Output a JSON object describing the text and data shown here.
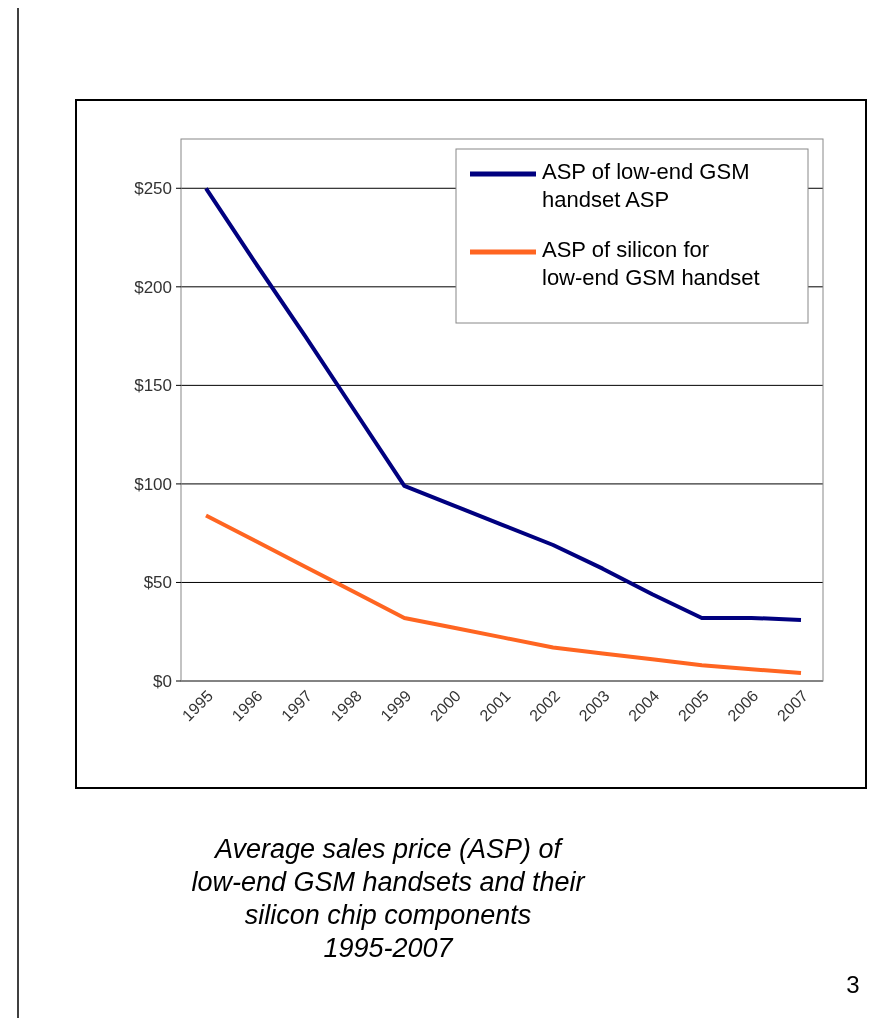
{
  "chart_data": {
    "type": "line",
    "categories": [
      "1995",
      "1996",
      "1997",
      "1998",
      "1999",
      "2000",
      "2001",
      "2002",
      "2003",
      "2004",
      "2005",
      "2006",
      "2007"
    ],
    "series": [
      {
        "name": "ASP of low-end GSM handset ASP",
        "color": "#00007f",
        "values": [
          250,
          212,
          175,
          137,
          99,
          89,
          79,
          69,
          57,
          44,
          32,
          32,
          31
        ]
      },
      {
        "name": "ASP of silicon for low-end GSM handset",
        "color": "#ff6521",
        "values": [
          84,
          71,
          58,
          45,
          32,
          27,
          22,
          17,
          14,
          11,
          8,
          6,
          4
        ]
      }
    ],
    "ylim": [
      0,
      275
    ],
    "yticks": [
      {
        "value": 0,
        "label": "$0"
      },
      {
        "value": 50,
        "label": "$50"
      },
      {
        "value": 100,
        "label": "$100"
      },
      {
        "value": 150,
        "label": "$150"
      },
      {
        "value": 200,
        "label": "$200"
      },
      {
        "value": 250,
        "label": "$250"
      }
    ],
    "grid": "y",
    "legend": "top right",
    "marker": "none",
    "line_style": "solid",
    "annotations": [
      "Average sales price (ASP) of low-end GSM handsets and their silicon chip components 1995-2007",
      "3"
    ]
  }
}
